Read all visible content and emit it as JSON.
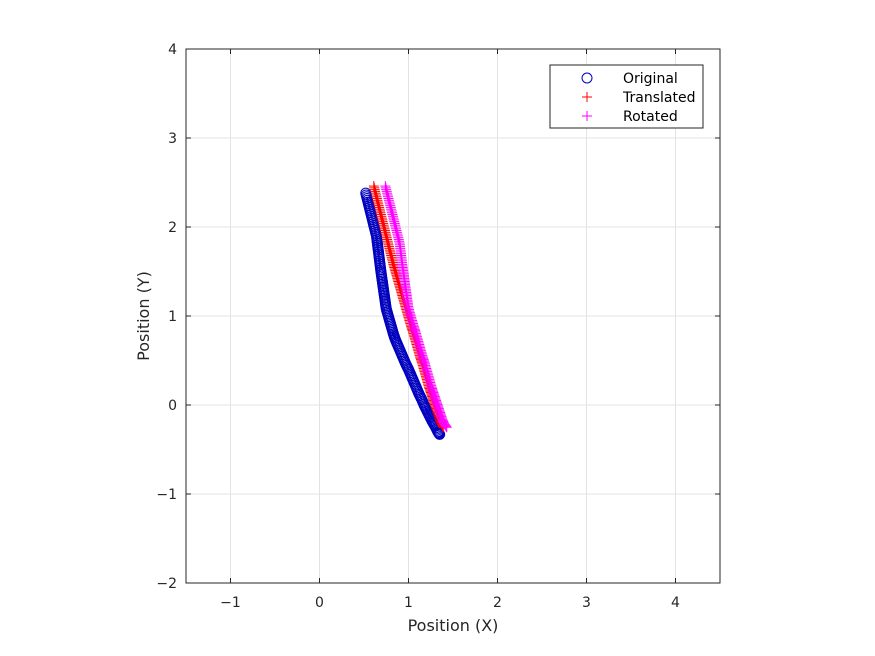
{
  "chart_data": {
    "type": "scatter",
    "title": "",
    "xlabel": "Position (X)",
    "ylabel": "Position (Y)",
    "xlim": [
      -1.5,
      4.5
    ],
    "ylim": [
      -2,
      4
    ],
    "xticks": [
      -1,
      0,
      1,
      2,
      3,
      4
    ],
    "yticks": [
      -2,
      -1,
      0,
      1,
      2,
      3,
      4
    ],
    "xtick_labels": [
      "−1",
      "0",
      "1",
      "2",
      "3",
      "4"
    ],
    "ytick_labels": [
      "−2",
      "−1",
      "0",
      "1",
      "2",
      "3",
      "4"
    ],
    "grid": true,
    "legend_position": "top-right",
    "series": [
      {
        "name": "Original",
        "marker": "circle",
        "color": "#0000bf",
        "x": [
          0.52,
          0.54,
          0.56,
          0.58,
          0.6,
          0.62,
          0.64,
          0.65,
          0.66,
          0.67,
          0.68,
          0.69,
          0.7,
          0.71,
          0.72,
          0.73,
          0.74,
          0.75,
          0.77,
          0.79,
          0.81,
          0.83,
          0.85,
          0.88,
          0.91,
          0.94,
          0.97,
          1.0,
          1.03,
          1.06,
          1.09,
          1.12,
          1.15,
          1.18,
          1.21,
          1.24,
          1.27,
          1.3,
          1.33,
          1.35
        ],
        "y": [
          2.38,
          2.3,
          2.22,
          2.14,
          2.06,
          1.98,
          1.9,
          1.82,
          1.74,
          1.66,
          1.58,
          1.5,
          1.43,
          1.36,
          1.29,
          1.22,
          1.15,
          1.08,
          1.01,
          0.94,
          0.87,
          0.8,
          0.74,
          0.67,
          0.6,
          0.53,
          0.46,
          0.4,
          0.33,
          0.26,
          0.19,
          0.12,
          0.06,
          -0.01,
          -0.07,
          -0.13,
          -0.19,
          -0.24,
          -0.3,
          -0.33
        ]
      },
      {
        "name": "Translated",
        "marker": "plus",
        "color": "#ff0000",
        "x": [
          0.61,
          0.63,
          0.65,
          0.67,
          0.69,
          0.71,
          0.73,
          0.75,
          0.77,
          0.79,
          0.81,
          0.83,
          0.85,
          0.87,
          0.89,
          0.91,
          0.93,
          0.95,
          0.97,
          0.99,
          1.01,
          1.03,
          1.05,
          1.07,
          1.09,
          1.11,
          1.13,
          1.15,
          1.17,
          1.19,
          1.21,
          1.23,
          1.25,
          1.27,
          1.29,
          1.31,
          1.33,
          1.35,
          1.37,
          1.39
        ],
        "y": [
          2.46,
          2.38,
          2.3,
          2.22,
          2.14,
          2.06,
          1.98,
          1.9,
          1.82,
          1.74,
          1.66,
          1.58,
          1.51,
          1.44,
          1.37,
          1.3,
          1.23,
          1.16,
          1.09,
          1.02,
          0.95,
          0.88,
          0.82,
          0.75,
          0.68,
          0.61,
          0.54,
          0.48,
          0.41,
          0.34,
          0.27,
          0.2,
          0.14,
          0.08,
          0.02,
          -0.04,
          -0.1,
          -0.16,
          -0.21,
          -0.25
        ]
      },
      {
        "name": "Rotated",
        "marker": "plus",
        "color": "#ff00ff",
        "x": [
          0.74,
          0.76,
          0.78,
          0.8,
          0.82,
          0.84,
          0.86,
          0.88,
          0.9,
          0.91,
          0.92,
          0.93,
          0.94,
          0.95,
          0.96,
          0.97,
          0.98,
          0.99,
          1.0,
          1.02,
          1.04,
          1.06,
          1.08,
          1.1,
          1.12,
          1.14,
          1.16,
          1.18,
          1.2,
          1.22,
          1.24,
          1.26,
          1.28,
          1.3,
          1.32,
          1.34,
          1.36,
          1.38,
          1.4,
          1.43
        ],
        "y": [
          2.46,
          2.38,
          2.3,
          2.22,
          2.14,
          2.06,
          1.98,
          1.9,
          1.82,
          1.74,
          1.66,
          1.58,
          1.51,
          1.44,
          1.37,
          1.3,
          1.23,
          1.16,
          1.09,
          1.02,
          0.95,
          0.88,
          0.82,
          0.75,
          0.68,
          0.61,
          0.54,
          0.48,
          0.41,
          0.34,
          0.27,
          0.2,
          0.14,
          0.08,
          0.02,
          -0.04,
          -0.1,
          -0.16,
          -0.21,
          -0.25
        ]
      }
    ]
  }
}
